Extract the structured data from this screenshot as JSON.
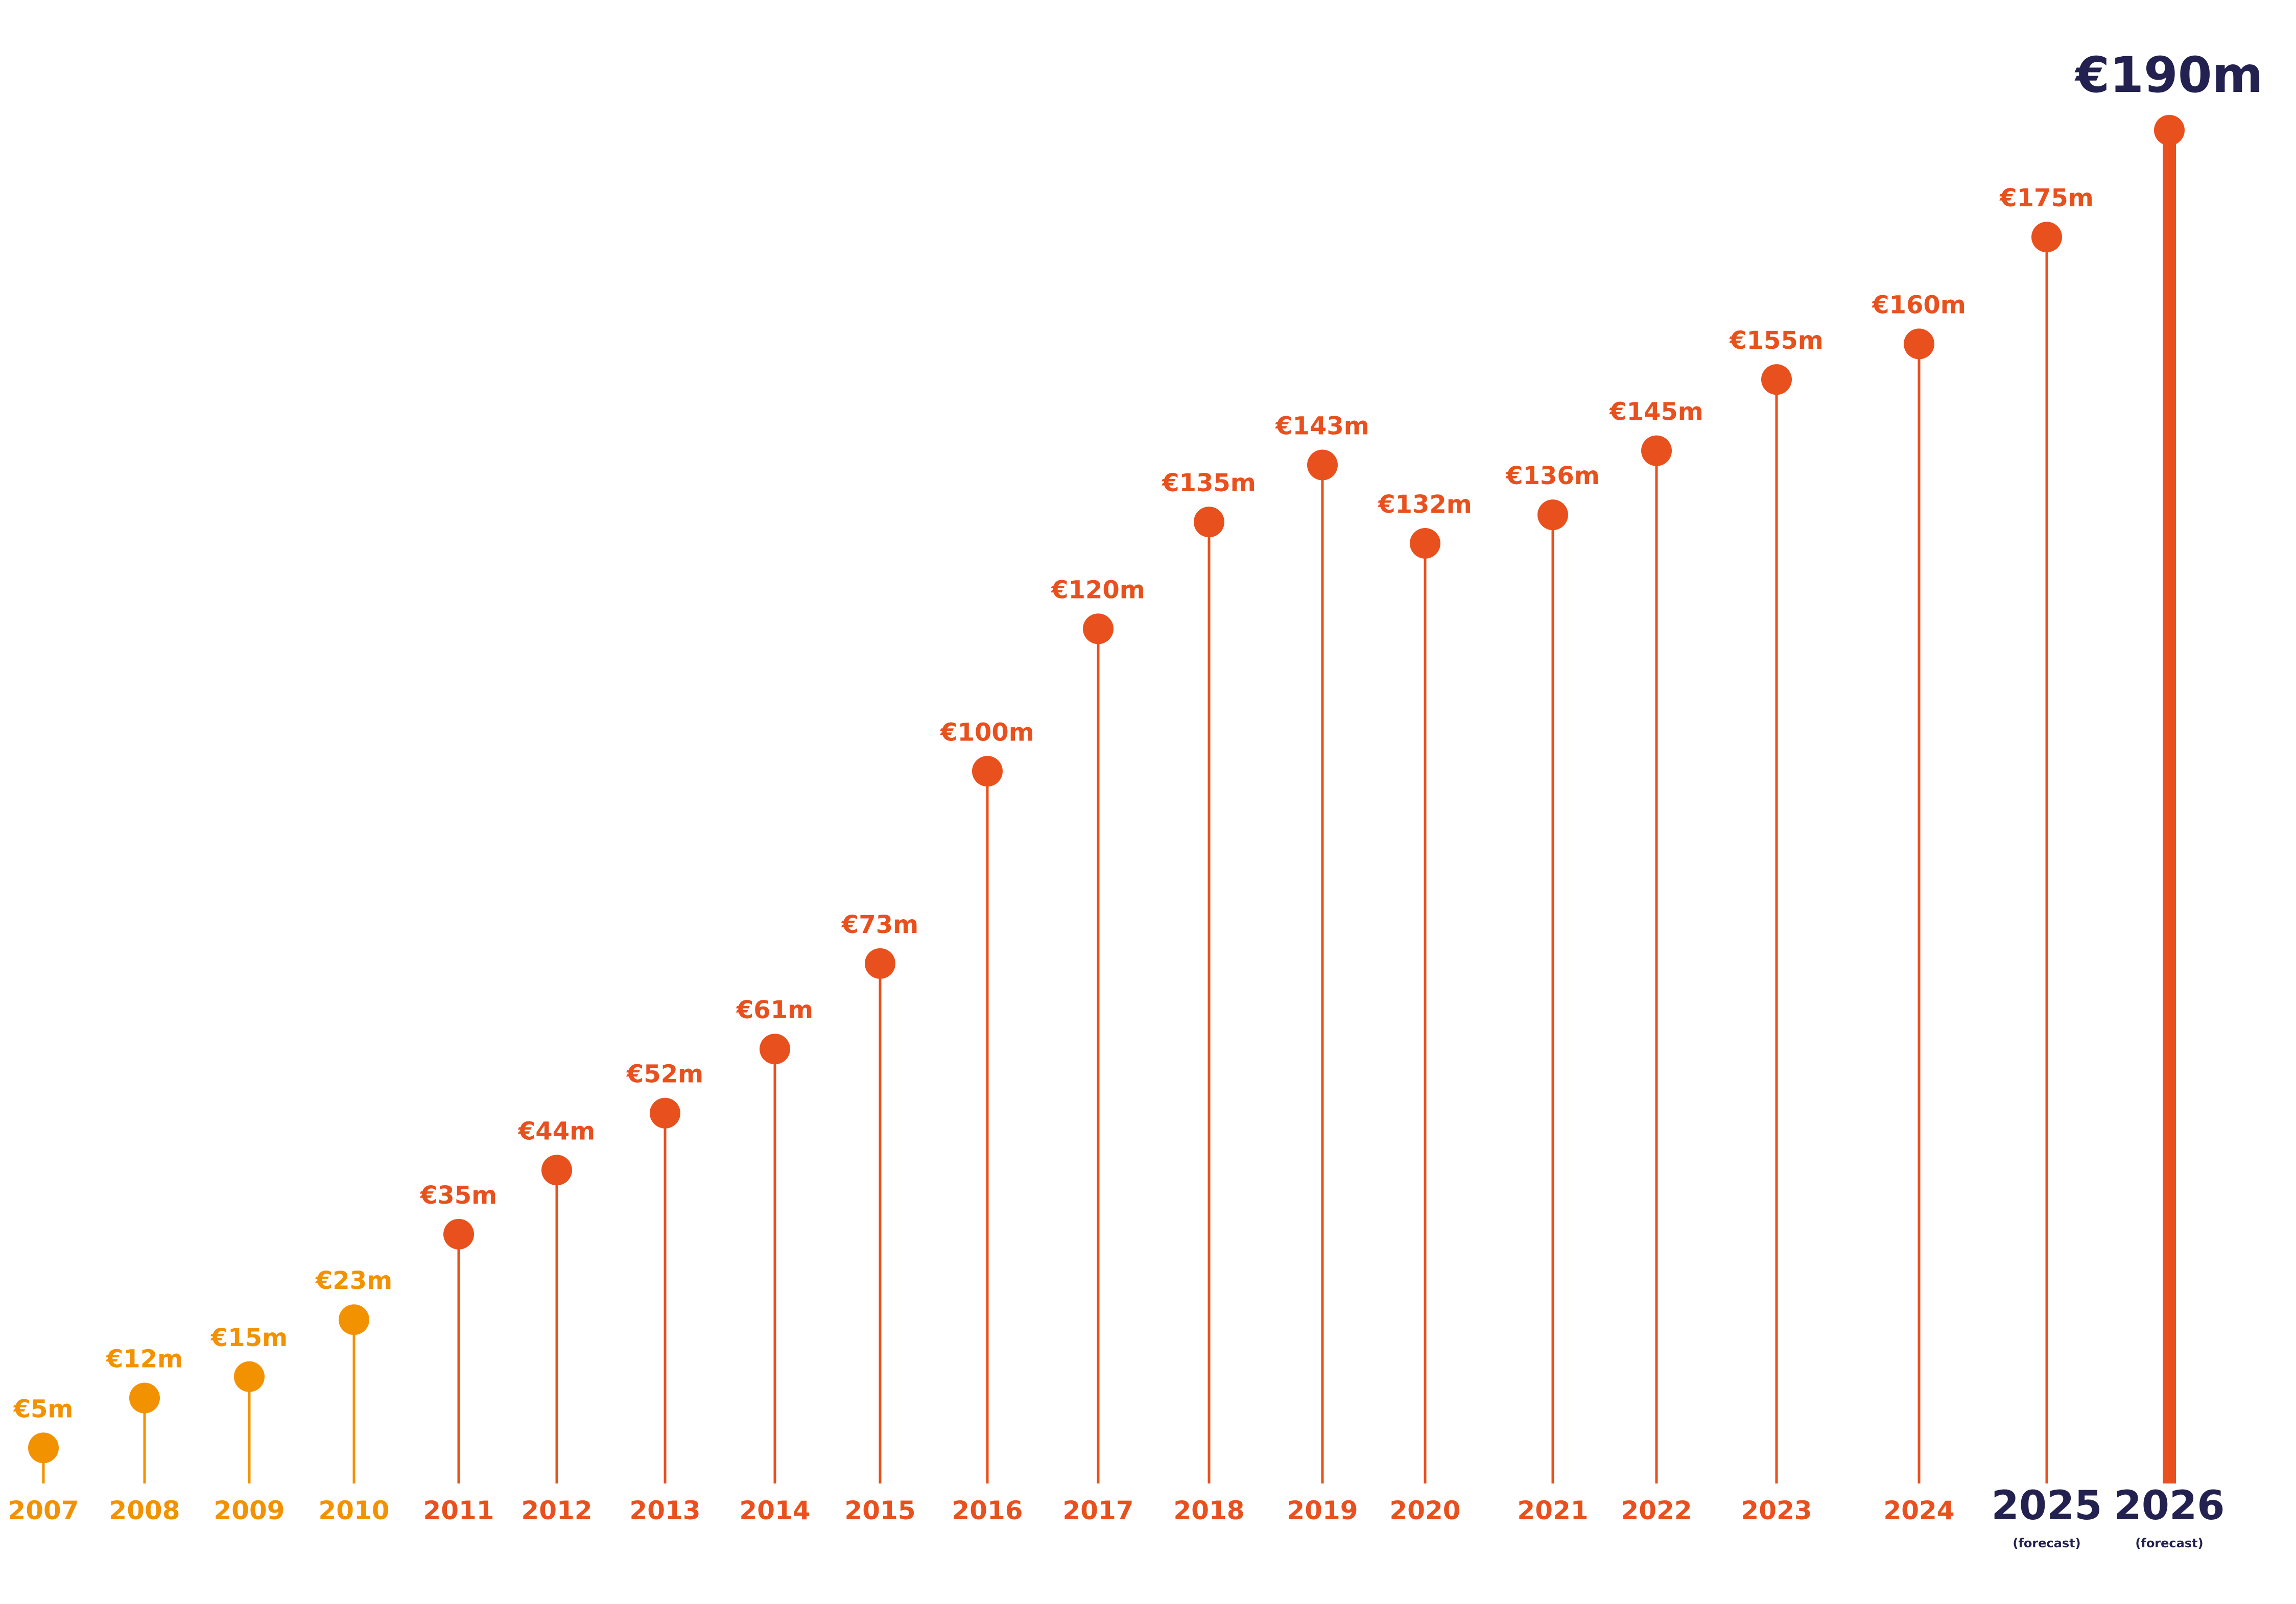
{
  "chart_data": {
    "type": "line",
    "title": "",
    "xlabel": "",
    "ylabel": "",
    "ylim": [
      0,
      190
    ],
    "grid": false,
    "legend": "none",
    "colors": {
      "early": "#F39200",
      "main": "#E8501E",
      "forecast_text": "#23214F"
    },
    "points": [
      {
        "year": "2007",
        "value": 5,
        "label": "€5m",
        "tone": "early"
      },
      {
        "year": "2008",
        "value": 12,
        "label": "€12m",
        "tone": "early"
      },
      {
        "year": "2009",
        "value": 15,
        "label": "€15m",
        "tone": "early"
      },
      {
        "year": "2010",
        "value": 23,
        "label": "€23m",
        "tone": "early"
      },
      {
        "year": "2011",
        "value": 35,
        "label": "€35m",
        "tone": "main"
      },
      {
        "year": "2012",
        "value": 44,
        "label": "€44m",
        "tone": "main"
      },
      {
        "year": "2013",
        "value": 52,
        "label": "€52m",
        "tone": "main"
      },
      {
        "year": "2014",
        "value": 61,
        "label": "€61m",
        "tone": "main"
      },
      {
        "year": "2015",
        "value": 73,
        "label": "€73m",
        "tone": "main"
      },
      {
        "year": "2016",
        "value": 100,
        "label": "€100m",
        "tone": "main"
      },
      {
        "year": "2017",
        "value": 120,
        "label": "€120m",
        "tone": "main"
      },
      {
        "year": "2018",
        "value": 135,
        "label": "€135m",
        "tone": "main"
      },
      {
        "year": "2019",
        "value": 143,
        "label": "€143m",
        "tone": "main"
      },
      {
        "year": "2020",
        "value": 132,
        "label": "€132m",
        "tone": "main"
      },
      {
        "year": "2021",
        "value": 136,
        "label": "€136m",
        "tone": "main"
      },
      {
        "year": "2022",
        "value": 145,
        "label": "€145m",
        "tone": "main"
      },
      {
        "year": "2023",
        "value": 155,
        "label": "€155m",
        "tone": "main"
      },
      {
        "year": "2024",
        "value": 160,
        "label": "€160m",
        "tone": "main"
      },
      {
        "year": "2025",
        "value": 175,
        "label": "€175m",
        "tone": "main",
        "note": "(forecast)"
      },
      {
        "year": "2026",
        "value": 190,
        "label": "€190m",
        "tone": "main",
        "note": "(forecast)",
        "highlight": true
      }
    ]
  }
}
